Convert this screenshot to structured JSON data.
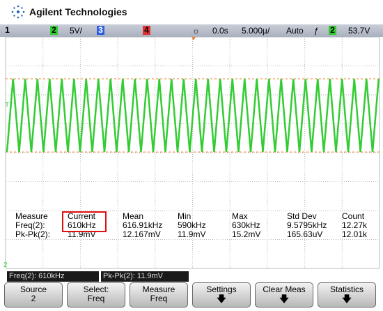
{
  "header": {
    "brand": "Agilent Technologies"
  },
  "status_bar": {
    "channel_1": "1",
    "channel_2": "2",
    "ch2_scale": "5V/",
    "channel_3": "3",
    "channel_4": "4",
    "delay": "0.0s",
    "timebase": "5.000µ/",
    "trigger_mode": "Auto",
    "trigger_slope": "ƒ",
    "trigger_source": "2",
    "trigger_level": "53.7V"
  },
  "screen": {
    "trigger_marker": "T",
    "ground_marker": "2"
  },
  "measurements": {
    "headers": [
      "Measure",
      "Current",
      "Mean",
      "Min",
      "Max",
      "Std Dev",
      "Count"
    ],
    "rows": [
      [
        "Freq(2):",
        "610kHz",
        "616.91kHz",
        "590kHz",
        "630kHz",
        "9.5795kHz",
        "12.27k"
      ],
      [
        "Pk-Pk(2):",
        "11.9mV",
        "12.167mV",
        "11.9mV",
        "15.2mV",
        "165.63uV",
        "12.01k"
      ]
    ]
  },
  "readouts": [
    "Freq(2): 610kHz",
    "Pk-Pk(2): 11.9mV"
  ],
  "softkeys": [
    {
      "label": "Source",
      "value": "2"
    },
    {
      "label": "Select:",
      "value": "Freq"
    },
    {
      "label": "Measure",
      "value": "Freq"
    },
    {
      "label": "Settings"
    },
    {
      "label": "Clear Meas"
    },
    {
      "label": "Statistics"
    }
  ]
}
